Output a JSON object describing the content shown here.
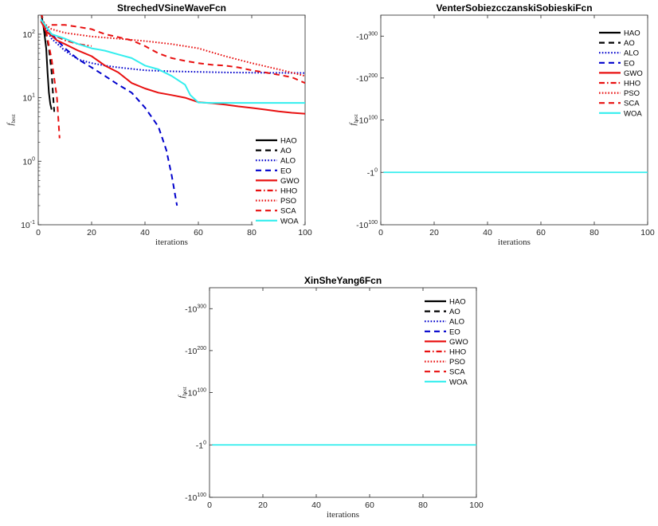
{
  "figure": {
    "layout": "three convergence plots: two on top row, one centered below"
  },
  "legend_entries": [
    {
      "name": "HAO",
      "color": "#000000",
      "dash": "solid",
      "width": 2.2
    },
    {
      "name": "AO",
      "color": "#000000",
      "dash": "dashed",
      "width": 2.2
    },
    {
      "name": "ALO",
      "color": "#0000cc",
      "dash": "dotted",
      "width": 2.2
    },
    {
      "name": "EO",
      "color": "#0000cc",
      "dash": "dashed",
      "width": 2.2
    },
    {
      "name": "GWO",
      "color": "#e81010",
      "dash": "solid",
      "width": 2.2
    },
    {
      "name": "HHO",
      "color": "#e81010",
      "dash": "dashdot",
      "width": 2.2
    },
    {
      "name": "PSO",
      "color": "#e81010",
      "dash": "dotted",
      "width": 2.2
    },
    {
      "name": "SCA",
      "color": "#e81010",
      "dash": "dashed",
      "width": 2.2
    },
    {
      "name": "WOA",
      "color": "#33eeee",
      "dash": "solid",
      "width": 2.2
    }
  ],
  "chart_data": [
    {
      "id": "streched",
      "type": "line",
      "title": "StrechedVSineWaveFcn",
      "xlabel": "iterations",
      "ylabel_main": "f",
      "ylabel_sub": "best",
      "yscale": "log",
      "xlim": [
        0,
        100
      ],
      "ylim_log10": [
        -1,
        2.3
      ],
      "xticks": [
        0,
        20,
        40,
        60,
        80,
        100
      ],
      "yticks": [
        {
          "value": 0.1,
          "base": "10",
          "exp": "-1"
        },
        {
          "value": 1,
          "base": "10",
          "exp": "0"
        },
        {
          "value": 10,
          "base": "10",
          "exp": "1"
        },
        {
          "value": 100,
          "base": "10",
          "exp": "2"
        }
      ],
      "legend_position": "bottom-right",
      "series": [
        {
          "name": "HAO",
          "x": [
            1,
            2,
            3,
            3.5,
            4,
            4.5,
            5
          ],
          "y": [
            220,
            130,
            60,
            25,
            12,
            8,
            6.5
          ]
        },
        {
          "name": "AO",
          "x": [
            1,
            2,
            3,
            4,
            5,
            5.5,
            6
          ],
          "y": [
            220,
            160,
            100,
            60,
            25,
            12,
            6
          ]
        },
        {
          "name": "ALO",
          "x": [
            1,
            5,
            10,
            15,
            20,
            25,
            30,
            40,
            50,
            60,
            70,
            80,
            90,
            100
          ],
          "y": [
            170,
            85,
            55,
            40,
            35,
            32,
            30,
            27,
            26,
            25.5,
            25,
            24.8,
            24.6,
            24.5
          ]
        },
        {
          "name": "EO",
          "x": [
            1,
            5,
            10,
            15,
            20,
            25,
            30,
            35,
            40,
            45,
            48,
            50,
            52
          ],
          "y": [
            170,
            100,
            60,
            40,
            30,
            22,
            16,
            12,
            7,
            3.5,
            1.5,
            0.6,
            0.2
          ]
        },
        {
          "name": "GWO",
          "x": [
            1,
            3,
            5,
            7,
            10,
            15,
            20,
            25,
            30,
            35,
            40,
            45,
            50,
            55,
            60,
            65,
            70,
            75,
            80,
            85,
            90,
            95,
            100
          ],
          "y": [
            160,
            110,
            95,
            80,
            70,
            55,
            45,
            32,
            25,
            17,
            14,
            12,
            11,
            10,
            8.5,
            8.2,
            7.8,
            7.3,
            6.9,
            6.5,
            6.1,
            5.8,
            5.6
          ]
        },
        {
          "name": "HHO",
          "x": [
            1,
            5,
            10,
            15,
            20
          ],
          "y": [
            160,
            100,
            80,
            70,
            65
          ]
        },
        {
          "name": "PSO",
          "x": [
            1,
            5,
            10,
            20,
            30,
            40,
            50,
            60,
            70,
            80,
            90,
            100
          ],
          "y": [
            160,
            120,
            105,
            92,
            85,
            78,
            70,
            60,
            45,
            35,
            28,
            22
          ]
        },
        {
          "name": "SCA",
          "x": [
            1,
            3,
            5,
            7,
            8
          ],
          "y": [
            220,
            110,
            40,
            10,
            2.3
          ]
        },
        {
          "name": "SCA",
          "x": [
            5,
            10,
            15,
            20,
            25,
            30,
            35,
            40,
            45,
            50,
            55,
            60,
            65,
            70,
            75,
            80,
            85,
            90,
            95,
            100
          ],
          "y": [
            140,
            140,
            130,
            120,
            100,
            90,
            80,
            65,
            50,
            42,
            38,
            35,
            33,
            32,
            30,
            27,
            25,
            23,
            21,
            17
          ]
        },
        {
          "name": "WOA",
          "x": [
            1,
            5,
            10,
            15,
            20,
            25,
            30,
            35,
            40,
            45,
            50,
            55,
            57,
            60,
            65,
            70,
            75,
            80,
            85,
            90,
            95,
            100
          ],
          "y": [
            170,
            100,
            85,
            70,
            60,
            55,
            48,
            42,
            32,
            28,
            22,
            16,
            11,
            8.4,
            8.3,
            8.3,
            8.3,
            8.3,
            8.3,
            8.3,
            8.3,
            8.3
          ]
        }
      ]
    },
    {
      "id": "venter",
      "type": "line",
      "title": "VenterSobiezcczanskiSobieskiFcn",
      "xlabel": "iterations",
      "ylabel_main": "f",
      "ylabel_sub": "best",
      "yscale": "symlog-negative",
      "xlim": [
        0,
        100
      ],
      "xticks": [
        0,
        20,
        40,
        60,
        80,
        100
      ],
      "yticks": [
        {
          "position": 0.9,
          "base": "-10",
          "exp": "300"
        },
        {
          "position": 0.7,
          "base": "-10",
          "exp": "200"
        },
        {
          "position": 0.5,
          "base": "-10",
          "exp": "100"
        },
        {
          "position": 0.25,
          "base": "-1",
          "exp": "0"
        },
        {
          "position": 0.0,
          "base": "-10",
          "exp": "100"
        }
      ],
      "legend_position": "top-right",
      "constant_level": "-1",
      "series_overlay": [
        "HAO",
        "AO",
        "ALO",
        "EO",
        "GWO",
        "HHO",
        "PSO",
        "SCA",
        "WOA"
      ]
    },
    {
      "id": "xinsheyang",
      "type": "line",
      "title": "XinSheYang6Fcn",
      "xlabel": "iterations",
      "ylabel_main": "f",
      "ylabel_sub": "best",
      "yscale": "symlog-negative",
      "xlim": [
        0,
        100
      ],
      "xticks": [
        0,
        20,
        40,
        60,
        80,
        100
      ],
      "yticks": [
        {
          "position": 0.9,
          "base": "-10",
          "exp": "300"
        },
        {
          "position": 0.7,
          "base": "-10",
          "exp": "200"
        },
        {
          "position": 0.5,
          "base": "-10",
          "exp": "100"
        },
        {
          "position": 0.25,
          "base": "-1",
          "exp": "0"
        },
        {
          "position": 0.0,
          "base": "-10",
          "exp": "100"
        }
      ],
      "legend_position": "top-right",
      "constant_level": "-1",
      "series_overlay": [
        "HAO",
        "AO",
        "ALO",
        "EO",
        "GWO",
        "HHO",
        "PSO",
        "SCA",
        "WOA"
      ]
    }
  ]
}
